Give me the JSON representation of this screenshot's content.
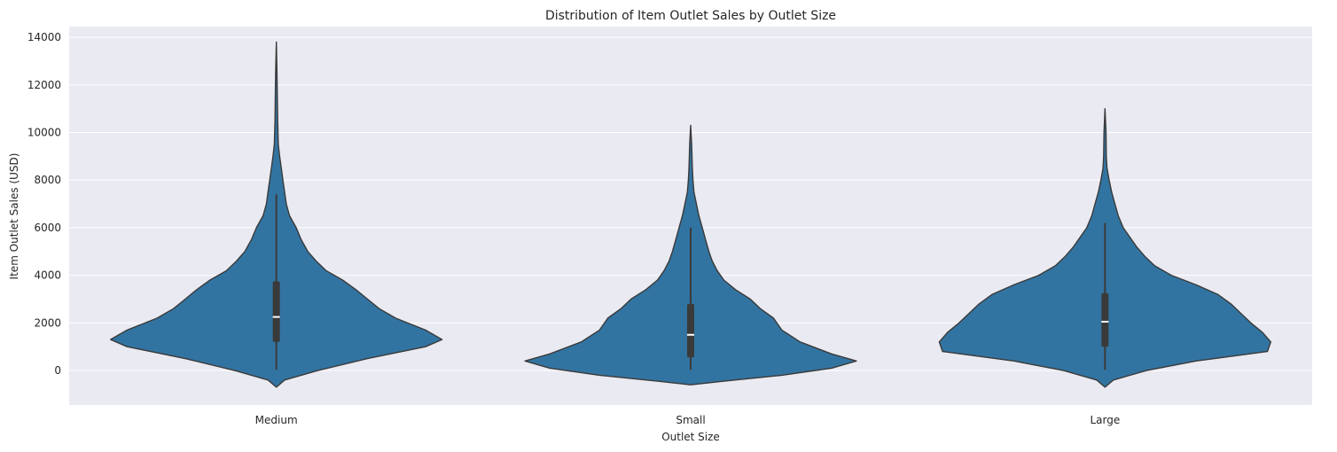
{
  "chart_data": {
    "type": "violin",
    "title": "Distribution of Item Outlet Sales by Outlet Size",
    "xlabel": "Outlet Size",
    "ylabel": "Item Outlet Sales (USD)",
    "ylim": [
      -1450,
      14450
    ],
    "yticks": [
      0,
      2000,
      4000,
      6000,
      8000,
      10000,
      12000,
      14000
    ],
    "grid": true,
    "colors": {
      "background": "#eaeaf2",
      "violin_fill": "#3274a1",
      "violin_edge": "#3a3a3a",
      "box": "#3a3a3a",
      "median": "#ffffff",
      "grid": "#ffffff"
    },
    "categories": [
      "Medium",
      "Small",
      "Large"
    ],
    "violins": [
      {
        "category": "Medium",
        "box": {
          "q1": 1200,
          "median": 2250,
          "q3": 3750,
          "whisker_low": 33,
          "whisker_high": 7400
        },
        "density": [
          [
            -700,
            0.0
          ],
          [
            -400,
            0.05
          ],
          [
            0,
            0.25
          ],
          [
            500,
            0.55
          ],
          [
            1000,
            0.9
          ],
          [
            1300,
            1.0
          ],
          [
            1700,
            0.9
          ],
          [
            2200,
            0.72
          ],
          [
            2600,
            0.62
          ],
          [
            3000,
            0.55
          ],
          [
            3400,
            0.48
          ],
          [
            3800,
            0.4
          ],
          [
            4200,
            0.3
          ],
          [
            4600,
            0.24
          ],
          [
            5000,
            0.19
          ],
          [
            5500,
            0.15
          ],
          [
            6000,
            0.12
          ],
          [
            6500,
            0.08
          ],
          [
            7000,
            0.06
          ],
          [
            7500,
            0.05
          ],
          [
            8000,
            0.04
          ],
          [
            8500,
            0.03
          ],
          [
            9000,
            0.02
          ],
          [
            9500,
            0.012
          ],
          [
            10500,
            0.008
          ],
          [
            11500,
            0.006
          ],
          [
            12500,
            0.004
          ],
          [
            13800,
            0.0
          ]
        ]
      },
      {
        "category": "Small",
        "box": {
          "q1": 550,
          "median": 1500,
          "q3": 2800,
          "whisker_low": 33,
          "whisker_high": 6000
        },
        "density": [
          [
            -600,
            0.0
          ],
          [
            -450,
            0.2
          ],
          [
            -200,
            0.55
          ],
          [
            100,
            0.85
          ],
          [
            400,
            1.0
          ],
          [
            700,
            0.85
          ],
          [
            1200,
            0.66
          ],
          [
            1700,
            0.55
          ],
          [
            2200,
            0.5
          ],
          [
            2600,
            0.42
          ],
          [
            3000,
            0.36
          ],
          [
            3400,
            0.27
          ],
          [
            3800,
            0.2
          ],
          [
            4200,
            0.16
          ],
          [
            4600,
            0.13
          ],
          [
            5000,
            0.11
          ],
          [
            5500,
            0.09
          ],
          [
            6000,
            0.07
          ],
          [
            6500,
            0.05
          ],
          [
            7000,
            0.035
          ],
          [
            7500,
            0.02
          ],
          [
            8000,
            0.014
          ],
          [
            8500,
            0.01
          ],
          [
            9500,
            0.006
          ],
          [
            10300,
            0.0
          ]
        ]
      },
      {
        "category": "Large",
        "box": {
          "q1": 1000,
          "median": 2050,
          "q3": 3250,
          "whisker_low": 33,
          "whisker_high": 6200
        },
        "density": [
          [
            -700,
            0.0
          ],
          [
            -400,
            0.05
          ],
          [
            0,
            0.25
          ],
          [
            400,
            0.55
          ],
          [
            800,
            0.98
          ],
          [
            1200,
            1.0
          ],
          [
            1600,
            0.95
          ],
          [
            2000,
            0.88
          ],
          [
            2400,
            0.82
          ],
          [
            2800,
            0.76
          ],
          [
            3200,
            0.68
          ],
          [
            3600,
            0.55
          ],
          [
            4000,
            0.4
          ],
          [
            4400,
            0.3
          ],
          [
            4800,
            0.24
          ],
          [
            5200,
            0.19
          ],
          [
            5600,
            0.15
          ],
          [
            6000,
            0.11
          ],
          [
            6500,
            0.08
          ],
          [
            7000,
            0.06
          ],
          [
            7500,
            0.04
          ],
          [
            8000,
            0.025
          ],
          [
            8500,
            0.012
          ],
          [
            9000,
            0.008
          ],
          [
            10000,
            0.006
          ],
          [
            11000,
            0.0
          ]
        ]
      }
    ]
  }
}
